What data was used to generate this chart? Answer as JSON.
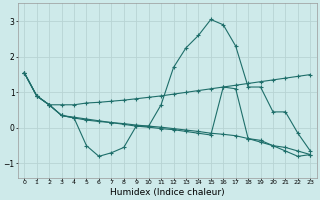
{
  "xlabel": "Humidex (Indice chaleur)",
  "xlim": [
    -0.5,
    23.5
  ],
  "ylim": [
    -1.4,
    3.5
  ],
  "yticks": [
    -1,
    0,
    1,
    2,
    3
  ],
  "xticks": [
    0,
    1,
    2,
    3,
    4,
    5,
    6,
    7,
    8,
    9,
    10,
    11,
    12,
    13,
    14,
    15,
    16,
    17,
    18,
    19,
    20,
    21,
    22,
    23
  ],
  "bg_color": "#ceeaea",
  "grid_color": "#b8d4d4",
  "line_color": "#1e6e6a",
  "lines": [
    [
      1.55,
      0.9,
      0.65,
      0.35,
      0.28,
      -0.5,
      -0.8,
      -0.7,
      -0.55,
      0.05,
      0.05,
      0.65,
      1.7,
      2.25,
      2.6,
      3.05,
      2.9,
      2.3,
      1.15,
      1.15,
      0.45,
      0.45,
      -0.15,
      -0.65
    ],
    [
      1.55,
      0.9,
      0.65,
      0.35,
      0.3,
      0.25,
      0.2,
      0.15,
      0.1,
      0.05,
      0.02,
      -0.02,
      -0.05,
      -0.1,
      -0.15,
      -0.2,
      1.15,
      1.1,
      -0.3,
      -0.35,
      -0.5,
      -0.55,
      -0.65,
      -0.75
    ],
    [
      1.55,
      0.9,
      0.65,
      0.65,
      0.65,
      0.7,
      0.72,
      0.75,
      0.78,
      0.82,
      0.86,
      0.9,
      0.95,
      1.0,
      1.05,
      1.1,
      1.15,
      1.2,
      1.25,
      1.3,
      1.35,
      1.4,
      1.45,
      1.5
    ],
    [
      1.55,
      0.9,
      0.65,
      0.35,
      0.28,
      0.22,
      0.18,
      0.15,
      0.12,
      0.08,
      0.05,
      0.02,
      -0.02,
      -0.06,
      -0.1,
      -0.15,
      -0.18,
      -0.22,
      -0.3,
      -0.4,
      -0.5,
      -0.65,
      -0.8,
      -0.75
    ]
  ]
}
